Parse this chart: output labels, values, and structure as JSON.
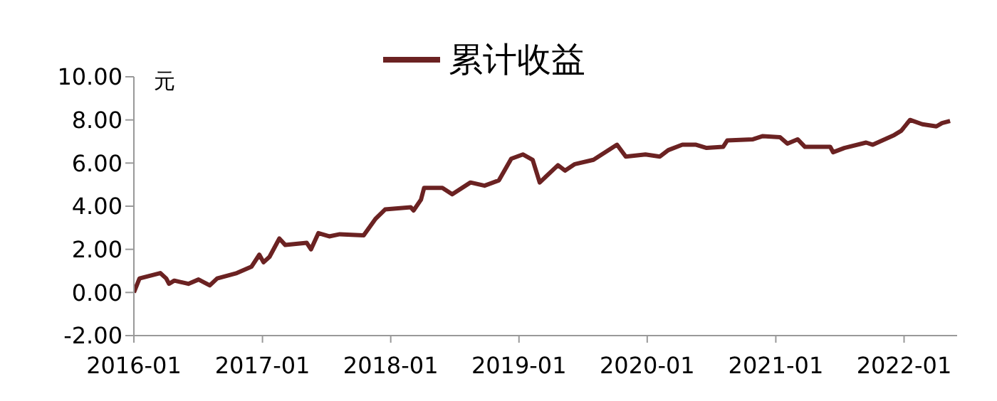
{
  "chart_data": {
    "type": "line",
    "ylabel": "元",
    "legend": "top",
    "grid": false,
    "marker": "none",
    "line_style": "solid",
    "xlim": [
      "2016-01-01",
      "2022-06-01"
    ],
    "xticks": [
      "2016-01",
      "2017-01",
      "2018-01",
      "2019-01",
      "2020-01",
      "2021-01",
      "2022-01"
    ],
    "ylim": [
      -2,
      10
    ],
    "yticks": [
      {
        "value": -2,
        "label": "-2.00"
      },
      {
        "value": 0,
        "label": "0.00"
      },
      {
        "value": 2,
        "label": "2.00"
      },
      {
        "value": 4,
        "label": "4.00"
      },
      {
        "value": 6,
        "label": "6.00"
      },
      {
        "value": 8,
        "label": "8.00"
      },
      {
        "value": 10,
        "label": "10.00"
      }
    ],
    "x": [
      "2016-01-01",
      "2016-01-17",
      "2016-03-16",
      "2016-04-02",
      "2016-04-10",
      "2016-04-25",
      "2016-06-04",
      "2016-07-03",
      "2016-08-04",
      "2016-08-25",
      "2016-10-20",
      "2016-12-01",
      "2016-12-23",
      "2017-01-04",
      "2017-01-21",
      "2017-02-18",
      "2017-03-07",
      "2017-05-07",
      "2017-05-19",
      "2017-06-09",
      "2017-07-10",
      "2017-08-09",
      "2017-10-16",
      "2017-11-18",
      "2017-12-16",
      "2018-02-27",
      "2018-03-07",
      "2018-03-28",
      "2018-04-06",
      "2018-05-28",
      "2018-06-25",
      "2018-08-16",
      "2018-09-25",
      "2018-11-05",
      "2018-12-10",
      "2019-01-12",
      "2019-02-09",
      "2019-03-01",
      "2019-04-22",
      "2019-05-12",
      "2019-06-09",
      "2019-08-01",
      "2019-10-07",
      "2019-11-01",
      "2019-12-27",
      "2020-02-06",
      "2020-03-01",
      "2020-04-10",
      "2020-05-19",
      "2020-06-18",
      "2020-08-04",
      "2020-08-16",
      "2020-10-28",
      "2020-11-25",
      "2021-01-13",
      "2021-02-03",
      "2021-03-04",
      "2021-03-25",
      "2021-06-05",
      "2021-06-13",
      "2021-07-15",
      "2021-09-15",
      "2021-10-04",
      "2021-12-04",
      "2021-12-24",
      "2022-01-18",
      "2022-02-22",
      "2022-04-03",
      "2022-04-19",
      "2022-05-12"
    ],
    "series": [
      {
        "name": "累计收益",
        "color": "#6b2222",
        "values": [
          0,
          0.65,
          0.9,
          0.65,
          0.4,
          0.55,
          0.4,
          0.6,
          0.33,
          0.65,
          0.9,
          1.2,
          1.75,
          1.4,
          1.65,
          2.5,
          2.2,
          2.3,
          2.0,
          2.75,
          2.6,
          2.7,
          2.65,
          3.4,
          3.85,
          3.95,
          3.8,
          4.3,
          4.85,
          4.85,
          4.55,
          5.1,
          4.95,
          5.2,
          6.2,
          6.4,
          6.15,
          5.1,
          5.9,
          5.65,
          5.95,
          6.15,
          6.85,
          6.3,
          6.4,
          6.3,
          6.6,
          6.85,
          6.85,
          6.7,
          6.75,
          7.05,
          7.1,
          7.25,
          7.2,
          6.9,
          7.1,
          6.75,
          6.75,
          6.5,
          6.7,
          6.95,
          6.85,
          7.3,
          7.5,
          8.0,
          7.8,
          7.7,
          7.85,
          7.95
        ]
      }
    ]
  }
}
